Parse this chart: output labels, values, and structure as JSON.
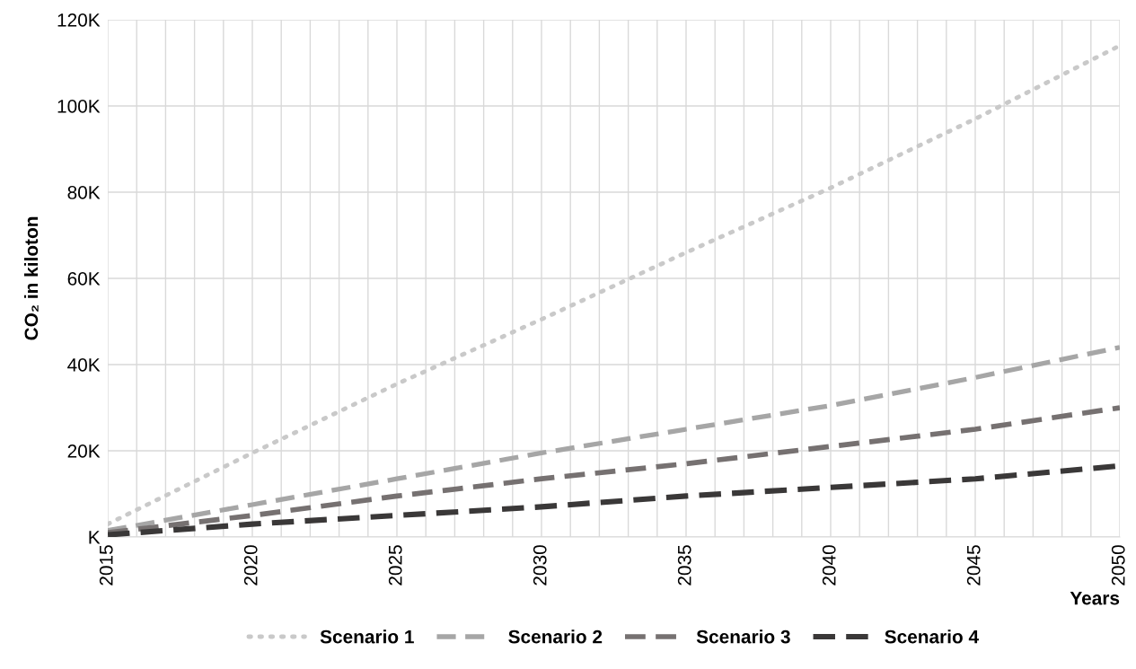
{
  "chart_data": {
    "type": "line",
    "xlabel": "Years",
    "ylabel": "CO₂ in kiloton",
    "x": [
      2015,
      2020,
      2025,
      2030,
      2035,
      2040,
      2045,
      2050
    ],
    "series": [
      {
        "name": "Scenario 1",
        "color": "#c9c9c9",
        "line_style": "dotted",
        "values": [
          3000,
          19500,
          35500,
          50500,
          66000,
          81000,
          97000,
          114000
        ]
      },
      {
        "name": "Scenario 2",
        "color": "#a6a6a6",
        "line_style": "dashed",
        "values": [
          1500,
          7500,
          13500,
          19500,
          25000,
          30500,
          37000,
          44000
        ]
      },
      {
        "name": "Scenario 3",
        "color": "#767171",
        "line_style": "dashed",
        "values": [
          1000,
          5000,
          9500,
          13500,
          17000,
          21000,
          25000,
          30000
        ]
      },
      {
        "name": "Scenario 4",
        "color": "#3a3838",
        "line_style": "dashed",
        "values": [
          500,
          3000,
          5000,
          7000,
          9500,
          11500,
          13500,
          16500
        ]
      }
    ],
    "xlim": [
      2015,
      2050
    ],
    "xticks": [
      2015,
      {
        "value": 2016,
        "label": null
      },
      {
        "value": 2017,
        "label": null
      },
      {
        "value": 2018,
        "label": null
      },
      {
        "value": 2019,
        "label": null
      },
      2020,
      {
        "value": 2021,
        "label": null
      },
      {
        "value": 2022,
        "label": null
      },
      {
        "value": 2023,
        "label": null
      },
      {
        "value": 2024,
        "label": null
      },
      2025,
      {
        "value": 2026,
        "label": null
      },
      {
        "value": 2027,
        "label": null
      },
      {
        "value": 2028,
        "label": null
      },
      {
        "value": 2029,
        "label": null
      },
      2030,
      {
        "value": 2031,
        "label": null
      },
      {
        "value": 2032,
        "label": null
      },
      {
        "value": 2033,
        "label": null
      },
      {
        "value": 2034,
        "label": null
      },
      2035,
      {
        "value": 2036,
        "label": null
      },
      {
        "value": 2037,
        "label": null
      },
      {
        "value": 2038,
        "label": null
      },
      {
        "value": 2039,
        "label": null
      },
      2040,
      {
        "value": 2041,
        "label": null
      },
      {
        "value": 2042,
        "label": null
      },
      {
        "value": 2043,
        "label": null
      },
      {
        "value": 2044,
        "label": null
      },
      2045,
      {
        "value": 2046,
        "label": null
      },
      {
        "value": 2047,
        "label": null
      },
      {
        "value": 2048,
        "label": null
      },
      {
        "value": 2049,
        "label": null
      },
      2050
    ],
    "ylim": [
      0,
      120000
    ],
    "yticks": [
      {
        "value": 0,
        "label": "K"
      },
      {
        "value": 20000,
        "label": "20K"
      },
      {
        "value": 40000,
        "label": "40K"
      },
      {
        "value": 60000,
        "label": "60K"
      },
      {
        "value": 80000,
        "label": "80K"
      },
      {
        "value": 100000,
        "label": "100K"
      },
      {
        "value": 120000,
        "label": "120K"
      }
    ],
    "grid": true,
    "legend": "bottom"
  }
}
